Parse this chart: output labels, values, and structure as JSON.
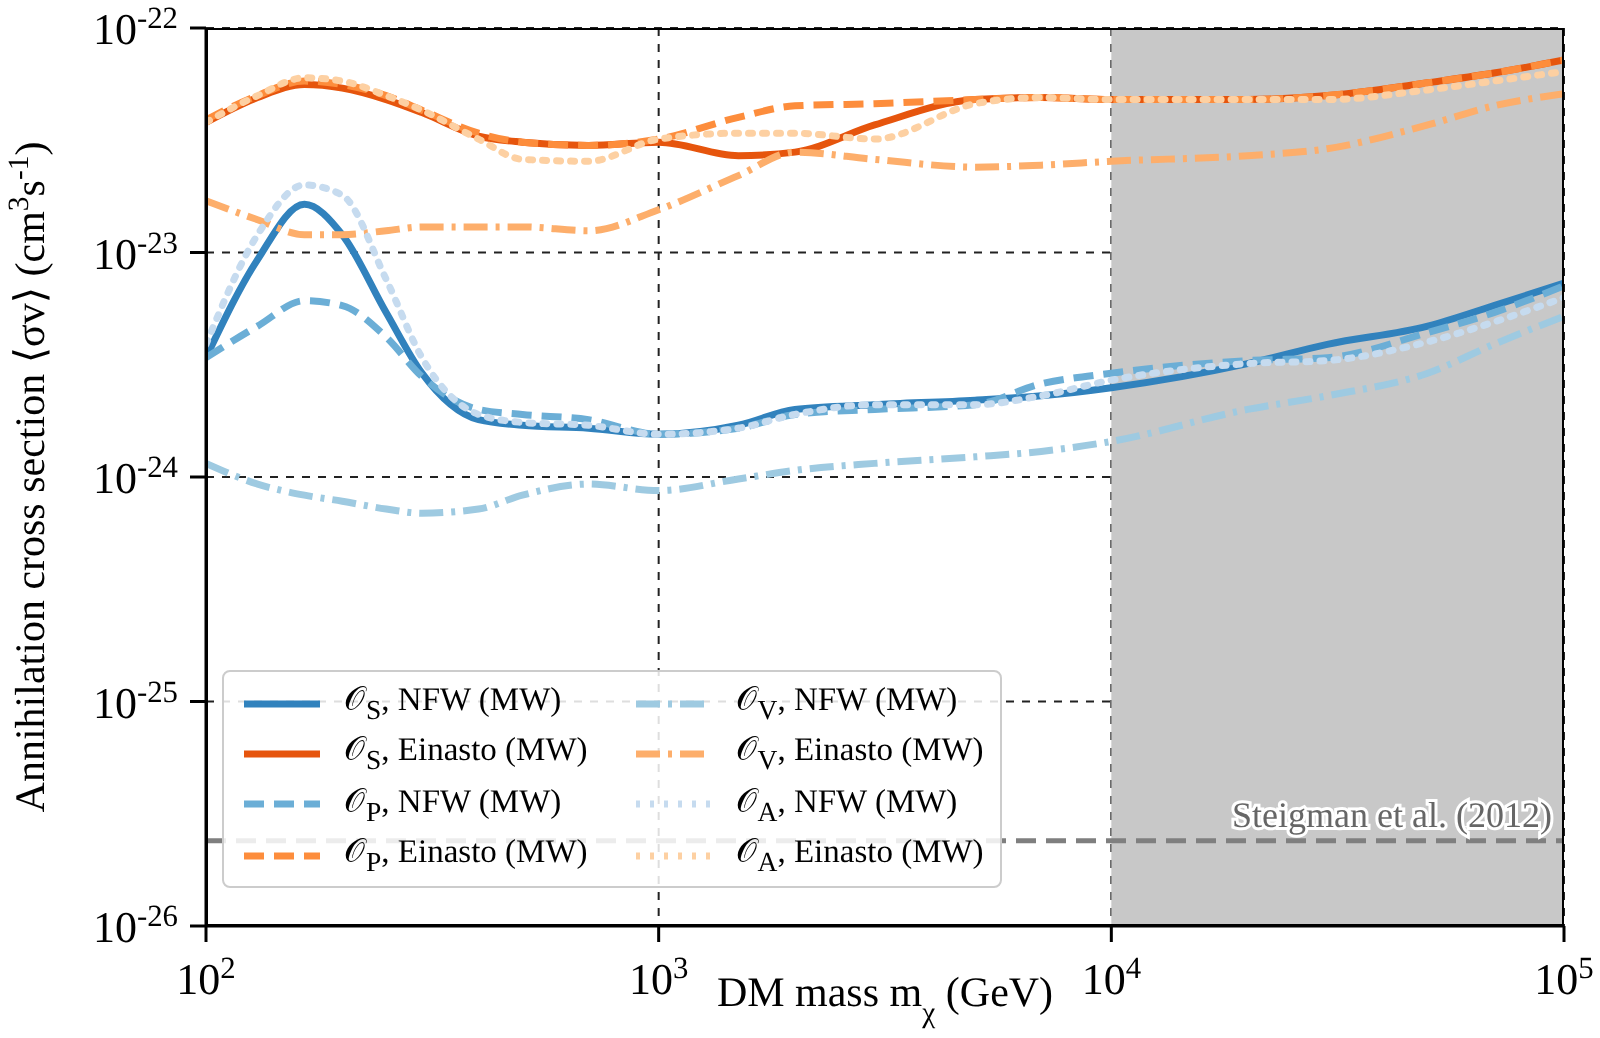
{
  "chart_data": {
    "type": "line",
    "xlabel": "DM mass m$_{χ}$ (GeV)",
    "ylabel": "Annihilation cross section ⟨σv⟩ (cm$^{3}$s$^{-1}$)",
    "log": "xy",
    "x": [
      100,
      130,
      165,
      200,
      250,
      300,
      400,
      500,
      700,
      1000,
      1500,
      2000,
      3000,
      5000,
      7000,
      10000,
      20000,
      30000,
      50000,
      70000,
      100000
    ],
    "xlim": [
      100,
      100000
    ],
    "xticks": [
      {
        "value": 100,
        "label": "10$^{2}$"
      },
      {
        "value": 1000,
        "label": "10$^{3}$"
      },
      {
        "value": 10000,
        "label": "10$^{4}$"
      },
      {
        "value": 100000,
        "label": "10$^{5}$"
      }
    ],
    "ylim": [
      1e-26,
      1e-22
    ],
    "yticks": [
      {
        "value": 1e-26,
        "label": "10$^{-26}$"
      },
      {
        "value": 1e-25,
        "label": "10$^{-25}$"
      },
      {
        "value": 1e-24,
        "label": "10$^{-24}$"
      },
      {
        "value": 1e-23,
        "label": "10$^{-23}$"
      },
      {
        "value": 1e-22,
        "label": "10$^{-22}$"
      }
    ],
    "grid": true,
    "legend": "bottom left",
    "bands": [
      {
        "axis": "x",
        "from": 10000,
        "to": 100000,
        "color": "#c8c8c8"
      }
    ],
    "ref_lines": [
      {
        "axis": "y",
        "value": 2.4e-26,
        "label": "Steigman et al. (2012)",
        "color": "#7f7f7f",
        "line_style": "dashed"
      }
    ],
    "series": [
      {
        "name": "𝒪$_{S}$, NFW (MW)",
        "color": "#3182bd",
        "line_style": "solid",
        "values": [
          3.4e-24,
          9.3e-24,
          1.64e-23,
          1.2e-23,
          5.4e-24,
          2.9e-24,
          1.8e-24,
          1.7e-24,
          1.65e-24,
          1.55e-24,
          1.7e-24,
          2e-24,
          2.1e-24,
          2.2e-24,
          2.3e-24,
          2.5e-24,
          3.2e-24,
          3.9e-24,
          4.7e-24,
          5.8e-24,
          7.3e-24
        ]
      },
      {
        "name": "𝒪$_{S}$, Einasto (MW)",
        "color": "#e6550d",
        "line_style": "solid",
        "values": [
          3.8e-23,
          4.9e-23,
          5.6e-23,
          5.4e-23,
          4.8e-23,
          4.2e-23,
          3.3e-23,
          3.1e-23,
          3e-23,
          3.1e-23,
          2.7e-23,
          2.8e-23,
          3.7e-23,
          4.8e-23,
          4.9e-23,
          4.8e-23,
          4.8e-23,
          5e-23,
          5.7e-23,
          6.3e-23,
          7.2e-23
        ]
      },
      {
        "name": "𝒪$_{P}$, NFW (MW)",
        "color": "#6baed6",
        "line_style": "dashed",
        "values": [
          3.4e-24,
          4.7e-24,
          6.1e-24,
          5.8e-24,
          4.2e-24,
          2.8e-24,
          2e-24,
          1.9e-24,
          1.8e-24,
          1.55e-24,
          1.65e-24,
          1.9e-24,
          2e-24,
          2.1e-24,
          2.6e-24,
          2.9e-24,
          3.3e-24,
          3.4e-24,
          4.4e-24,
          5.4e-24,
          7.1e-24
        ]
      },
      {
        "name": "𝒪$_{P}$, Einasto (MW)",
        "color": "#fd8d3c",
        "line_style": "dashed",
        "values": [
          3.9e-23,
          5e-23,
          5.8e-23,
          5.6e-23,
          5e-23,
          4.3e-23,
          3.4e-23,
          3.1e-23,
          3e-23,
          3.2e-23,
          4e-23,
          4.5e-23,
          4.6e-23,
          4.8e-23,
          4.9e-23,
          4.8e-23,
          4.8e-23,
          5e-23,
          5.7e-23,
          6.3e-23,
          7.2e-23
        ]
      },
      {
        "name": "𝒪$_{V}$, NFW (MW)",
        "color": "#9ecae1",
        "line_style": "dashdot",
        "values": [
          1.15e-24,
          9.3e-25,
          8.3e-25,
          7.8e-25,
          7.2e-25,
          6.9e-25,
          7.2e-25,
          8.3e-25,
          9.3e-25,
          8.7e-25,
          9.8e-25,
          1.07e-24,
          1.15e-24,
          1.23e-24,
          1.3e-24,
          1.44e-24,
          2e-24,
          2.3e-24,
          2.9e-24,
          3.9e-24,
          5.2e-24
        ]
      },
      {
        "name": "𝒪$_{V}$, Einasto (MW)",
        "color": "#fdae6b",
        "line_style": "dashdot",
        "values": [
          1.7e-23,
          1.4e-23,
          1.2e-23,
          1.2e-23,
          1.25e-23,
          1.3e-23,
          1.3e-23,
          1.3e-23,
          1.25e-23,
          1.55e-23,
          2.2e-23,
          2.8e-23,
          2.6e-23,
          2.4e-23,
          2.45e-23,
          2.55e-23,
          2.7e-23,
          2.9e-23,
          3.7e-23,
          4.5e-23,
          5.1e-23
        ]
      },
      {
        "name": "𝒪$_{A}$, NFW (MW)",
        "color": "#c6dbef",
        "line_style": "dotted",
        "values": [
          3.9e-24,
          1.2e-23,
          2e-23,
          1.8e-23,
          7.6e-24,
          3.4e-24,
          1.9e-24,
          1.75e-24,
          1.7e-24,
          1.55e-24,
          1.65e-24,
          1.9e-24,
          2.1e-24,
          2.1e-24,
          2.3e-24,
          2.7e-24,
          3.2e-24,
          3.3e-24,
          4e-24,
          4.9e-24,
          6.3e-24
        ]
      },
      {
        "name": "𝒪$_{A}$, Einasto (MW)",
        "color": "#fdd0a2",
        "line_style": "dotted",
        "values": [
          3.8e-23,
          5e-23,
          6e-23,
          5.8e-23,
          5e-23,
          4.3e-23,
          3.2e-23,
          2.6e-23,
          2.55e-23,
          3.2e-23,
          3.4e-23,
          3.4e-23,
          3.2e-23,
          4.6e-23,
          4.9e-23,
          4.8e-23,
          4.8e-23,
          4.8e-23,
          5.3e-23,
          5.8e-23,
          6.4e-23
        ]
      }
    ]
  }
}
